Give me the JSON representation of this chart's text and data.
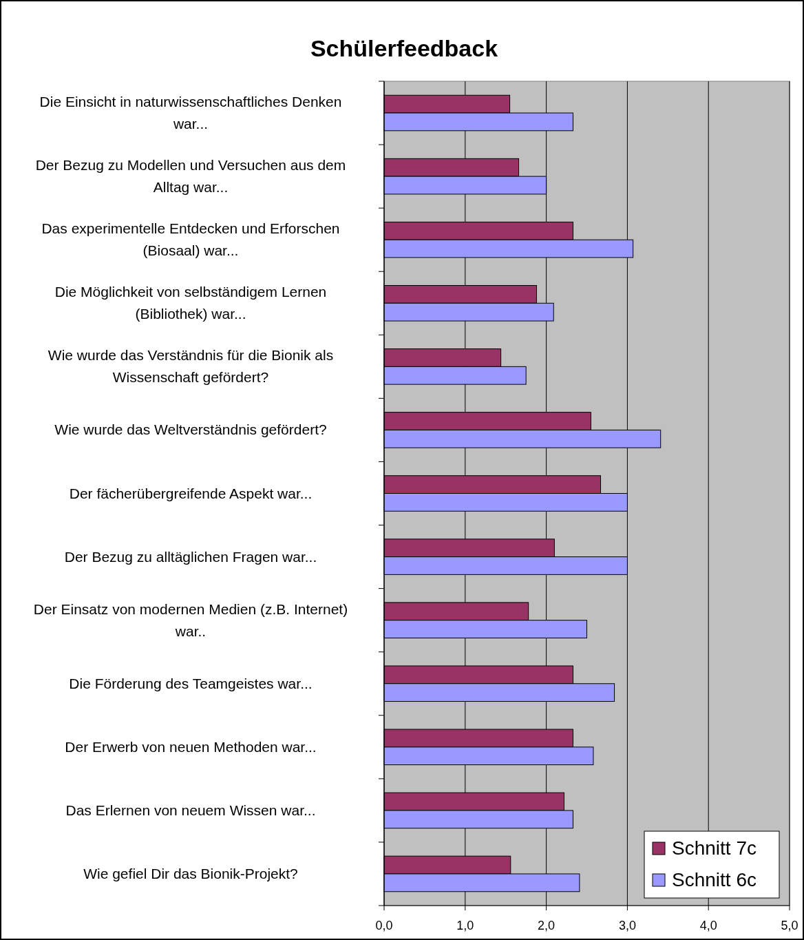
{
  "chart_data": {
    "type": "bar",
    "orientation": "horizontal",
    "title": "Schülerfeedback",
    "categories": [
      "Die Einsicht in naturwissenschaftliches Denken war...",
      "Der Bezug zu Modellen und Versuchen aus dem Alltag war...",
      "Das experimentelle Entdecken und Erforschen (Biosaal) war...",
      "Die Möglichkeit von selbständigem Lernen (Bibliothek) war...",
      "Wie wurde das Verständnis für die Bionik als Wissenschaft gefördert?",
      "Wie wurde das Weltverständnis gefördert?",
      "Der fächerübergreifende Aspekt war...",
      "Der Bezug zu alltäglichen Fragen war...",
      "Der Einsatz von modernen Medien (z.B. Internet) war..",
      "Die Förderung des Teamgeistes war...",
      "Der Erwerb von neuen Methoden war...",
      "Das Erlernen von neuem Wissen war...",
      "Wie gefiel Dir das Bionik-Projekt?"
    ],
    "series": [
      {
        "name": "Schnitt 7c",
        "color": "#993366",
        "values": [
          1.55,
          1.66,
          2.33,
          1.88,
          1.44,
          2.55,
          2.67,
          2.1,
          1.78,
          2.33,
          2.33,
          2.22,
          1.56
        ]
      },
      {
        "name": "Schnitt 6c",
        "color": "#9999ff",
        "values": [
          2.33,
          2.0,
          3.07,
          2.09,
          1.75,
          3.41,
          3.0,
          3.0,
          2.5,
          2.84,
          2.58,
          2.33,
          2.41
        ]
      }
    ],
    "xlim": [
      0,
      5
    ],
    "xticks": [
      {
        "value": 0,
        "label": "0,0"
      },
      {
        "value": 1,
        "label": "1,0"
      },
      {
        "value": 2,
        "label": "2,0"
      },
      {
        "value": 3,
        "label": "3,0"
      },
      {
        "value": 4,
        "label": "4,0"
      },
      {
        "value": 5,
        "label": "5,0"
      }
    ],
    "grid": "x",
    "legend": "bottom right"
  }
}
